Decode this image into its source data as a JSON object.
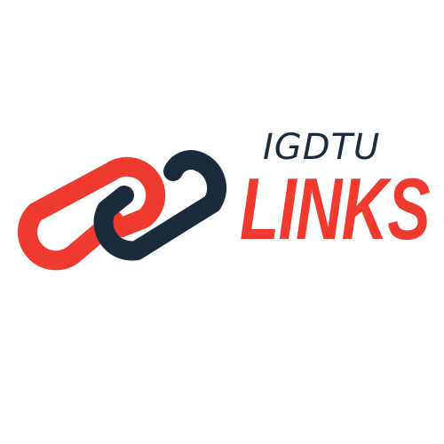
{
  "logo": {
    "top_text": "IGDTU",
    "main_text": "LINKS",
    "icon": "chain-link-icon"
  },
  "colors": {
    "accent_red": "#ef3b2f",
    "dark_navy": "#1c2b3b",
    "background": "#ffffff"
  }
}
